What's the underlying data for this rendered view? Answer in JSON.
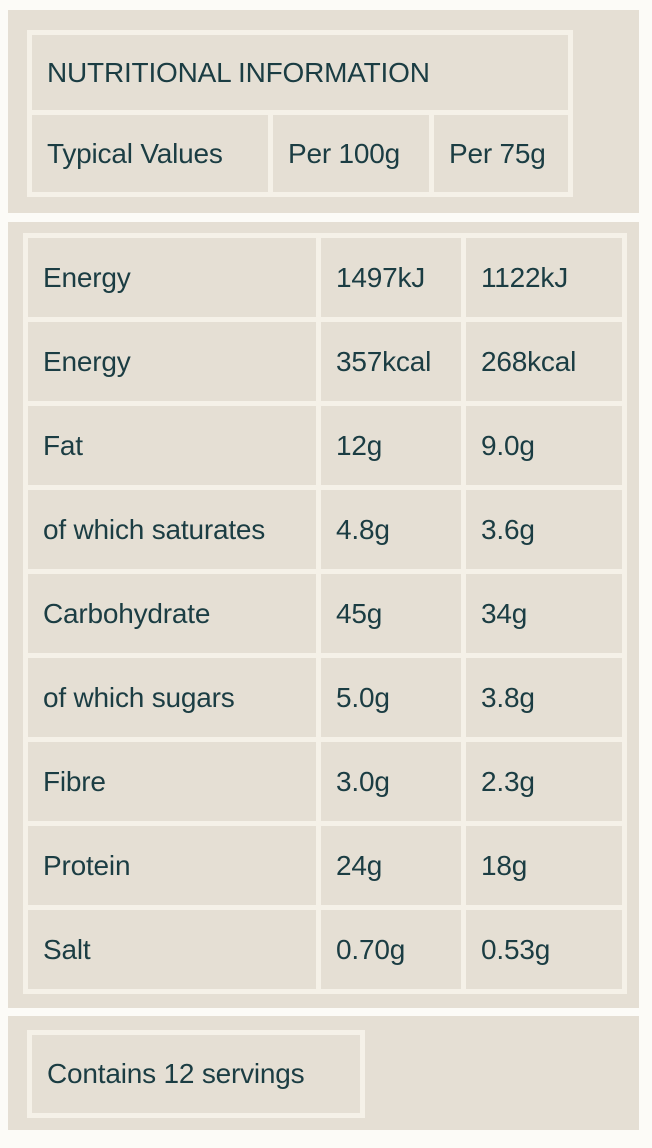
{
  "label": {
    "title": "NUTRITIONAL INFORMATION",
    "columns": [
      "Typical Values",
      "Per 100g",
      "Per 75g"
    ],
    "rows": [
      {
        "label": "Energy",
        "per100": "1497kJ",
        "per75": "1122kJ"
      },
      {
        "label": "Energy",
        "per100": "357kcal",
        "per75": "268kcal"
      },
      {
        "label": "Fat",
        "per100": "12g",
        "per75": "9.0g"
      },
      {
        "label": "of which saturates",
        "per100": "4.8g",
        "per75": "3.6g"
      },
      {
        "label": "Carbohydrate",
        "per100": "45g",
        "per75": "34g"
      },
      {
        "label": "of which sugars",
        "per100": "5.0g",
        "per75": "3.8g"
      },
      {
        "label": "Fibre",
        "per100": "3.0g",
        "per75": "2.3g"
      },
      {
        "label": "Protein",
        "per100": "24g",
        "per75": "18g"
      },
      {
        "label": "Salt",
        "per100": "0.70g",
        "per75": "0.53g"
      }
    ],
    "footer": "Contains 12 servings"
  },
  "colors": {
    "page": "#fcfbf7",
    "panel": "#e5dfd4",
    "borderc": "#f5f1e8",
    "text": "#1b3d43"
  }
}
